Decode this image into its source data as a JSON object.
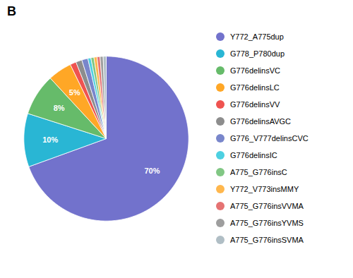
{
  "chart_data": {
    "type": "pie",
    "title": "B",
    "categories": [
      "Y772_A775dup",
      "G778_P780dup",
      "G776delinsVC",
      "G776delinsLC",
      "G776delinsVV",
      "G776delinsAVGC",
      "G776_V777delinsCVC",
      "G776delinsIC",
      "A775_G776insC",
      "Y772_V773insMMY",
      "A775_G776insVVMA",
      "A775_G776insYVMS",
      "A775_G776insSVMA"
    ],
    "values": [
      69.6,
      10.5,
      8.2,
      4.7,
      1.2,
      1.2,
      1.2,
      0.6,
      0.6,
      0.6,
      0.6,
      0.6,
      0.6
    ],
    "value_labels": [
      "70%",
      "10%",
      "8%",
      "5%",
      null,
      null,
      null,
      null,
      null,
      null,
      null,
      null,
      null
    ],
    "data_labels": true,
    "colors": [
      "#7272cc",
      "#29b6d4",
      "#66bb6a",
      "#ffa726",
      "#ef5350",
      "#8d8d8d",
      "#7986cb",
      "#4dd0e1",
      "#81c784",
      "#ffb74d",
      "#e57373",
      "#9e9e9e",
      "#b0bec5"
    ],
    "legend": "right"
  }
}
